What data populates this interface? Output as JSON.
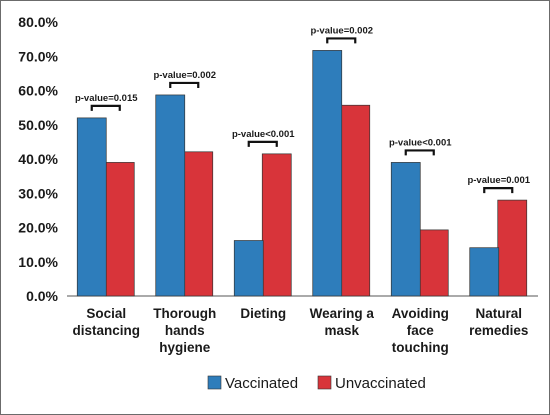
{
  "chart_data": {
    "type": "bar",
    "categories": [
      [
        "Social",
        "distancing"
      ],
      [
        "Thorough",
        "hands",
        "hygiene"
      ],
      [
        "Dieting"
      ],
      [
        "Wearing a",
        "mask"
      ],
      [
        "Avoiding",
        "face",
        "touching"
      ],
      [
        "Natural",
        "remedies"
      ]
    ],
    "series": [
      {
        "name": "Vaccinated",
        "values": [
          52.0,
          58.7,
          16.2,
          71.7,
          39.0,
          14.1
        ]
      },
      {
        "name": "Unvaccinated",
        "values": [
          39.0,
          42.1,
          41.5,
          55.7,
          19.3,
          28.0
        ]
      }
    ],
    "p_values": [
      "p-value=0.015",
      "p-value=0.002",
      "p-value<0.001",
      "p-value=0.002",
      "p-value<0.001",
      "p-value=0.001"
    ],
    "ylim": [
      0,
      80
    ],
    "yticks": [
      "0.0%",
      "10.0%",
      "20.0%",
      "30.0%",
      "40.0%",
      "50.0%",
      "60.0%",
      "70.0%",
      "80.0%"
    ],
    "colors": {
      "vaccinated": "#2e7dbb",
      "unvaccinated": "#d8343a"
    },
    "legend_position": "bottom",
    "grid": false
  }
}
